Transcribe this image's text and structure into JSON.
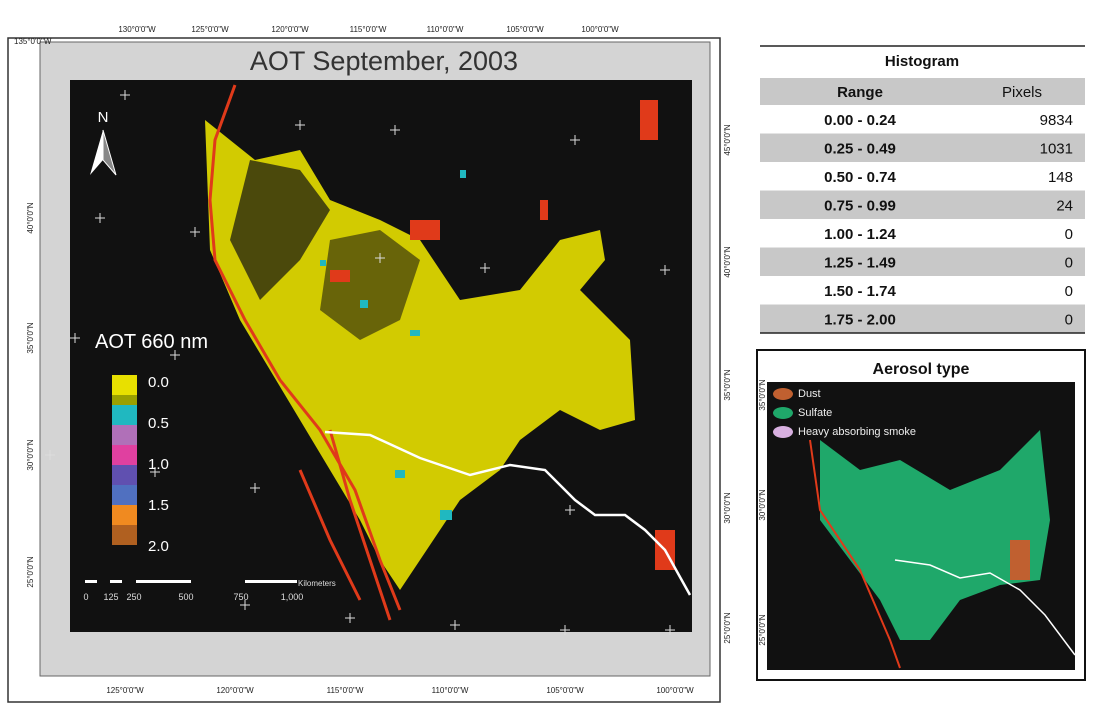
{
  "map": {
    "title": "AOT September, 2003",
    "corner_label": "135°0'0\"W",
    "top_labels": [
      "130°0'0\"W",
      "125°0'0\"W",
      "120°0'0\"W",
      "115°0'0\"W",
      "110°0'0\"W",
      "105°0'0\"W",
      "100°0'0\"W"
    ],
    "bottom_labels": [
      "125°0'0\"W",
      "120°0'0\"W",
      "115°0'0\"W",
      "110°0'0\"W",
      "105°0'0\"W",
      "100°0'0\"W"
    ],
    "left_labels": [
      "40°0'0\"N",
      "35°0'0\"N",
      "30°0'0\"N",
      "25°0'0\"N"
    ],
    "right_labels": [
      "45°0'0\"N",
      "40°0'0\"N",
      "35°0'0\"N",
      "30°0'0\"N",
      "25°0'0\"N"
    ],
    "north": "N",
    "legend_title": "AOT 660 nm",
    "legend_labels": [
      "0.0",
      "0.5",
      "1.0",
      "1.5",
      "2.0"
    ],
    "scale_labels": [
      "0",
      "125",
      "250",
      "500",
      "750",
      "1,000"
    ],
    "scale_unit": "Kilometers"
  },
  "histogram": {
    "title": "Histogram",
    "headers": [
      "Range",
      "Pixels"
    ],
    "rows": [
      [
        "0.00 - 0.24",
        9834
      ],
      [
        "0.25 - 0.49",
        1031
      ],
      [
        "0.50 - 0.74",
        148
      ],
      [
        "0.75 - 0.99",
        24
      ],
      [
        "1.00 - 1.24",
        0
      ],
      [
        "1.25 - 1.49",
        0
      ],
      [
        "1.50 - 1.74",
        0
      ],
      [
        "1.75 - 2.00",
        0
      ]
    ]
  },
  "aerosol": {
    "title": "Aerosol type",
    "legend": [
      "Dust",
      "Sulfate",
      "Heavy absorbing smoke"
    ],
    "right_labels": [
      "35°0'0\"N",
      "30°0'0\"N",
      "25°0'0\"N"
    ]
  }
}
